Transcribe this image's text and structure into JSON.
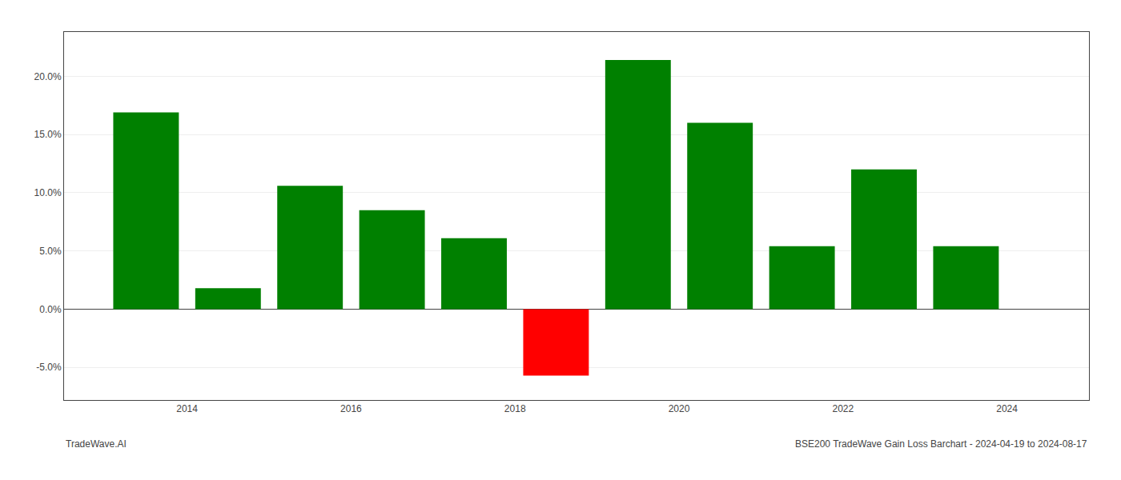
{
  "chart_data": {
    "type": "bar",
    "x": [
      2013.5,
      2014.5,
      2015.5,
      2016.5,
      2017.5,
      2018.5,
      2019.5,
      2020.5,
      2021.5,
      2022.5,
      2023.5
    ],
    "values": [
      0.169,
      0.018,
      0.106,
      0.085,
      0.061,
      -0.057,
      0.214,
      0.16,
      0.054,
      0.12,
      0.054
    ],
    "colors": [
      "#008000",
      "#008000",
      "#008000",
      "#008000",
      "#008000",
      "#ff0000",
      "#008000",
      "#008000",
      "#008000",
      "#008000",
      "#008000"
    ],
    "xlim": [
      2012.5,
      2025.0
    ],
    "ylim": [
      -0.078,
      0.238
    ],
    "xticks": [
      2014,
      2016,
      2018,
      2020,
      2022,
      2024
    ],
    "yticks": [
      {
        "value": -0.05,
        "label": "-5.0%"
      },
      {
        "value": 0.0,
        "label": "0.0%"
      },
      {
        "value": 0.05,
        "label": "5.0%"
      },
      {
        "value": 0.1,
        "label": "10.0%"
      },
      {
        "value": 0.15,
        "label": "15.0%"
      },
      {
        "value": 0.2,
        "label": "20.0%"
      }
    ],
    "grid": true,
    "annotations": [
      "TradeWave.AI",
      "BSE200 TradeWave Gain Loss Barchart - 2024-04-19 to 2024-08-17"
    ]
  }
}
